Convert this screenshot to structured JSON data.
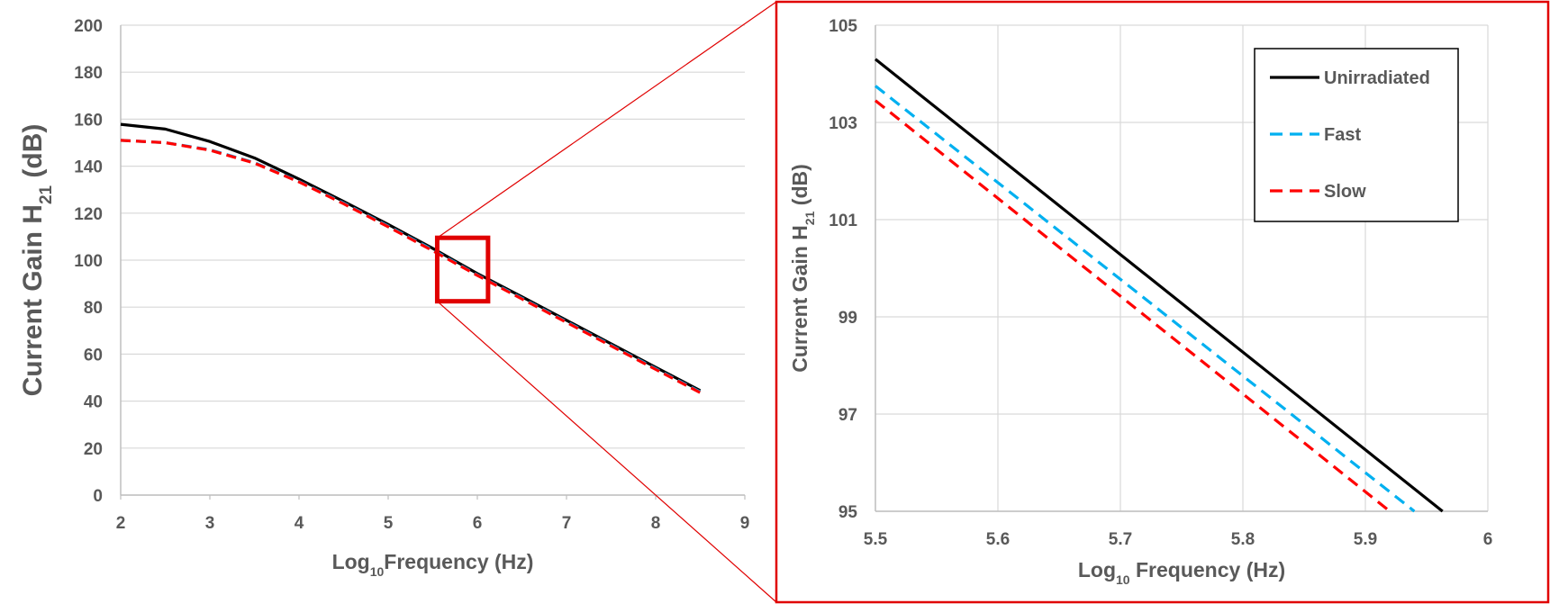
{
  "colors": {
    "unirradiated": "#000000",
    "fast": "#00b0f0",
    "slow": "#ff0000",
    "grid": "#d9d9d9",
    "axis": "#bfbfbf",
    "text": "#595959",
    "zoom_frame": "#e00000"
  },
  "chart_data": [
    {
      "type": "line",
      "title": "",
      "xlabel": {
        "prefix": "Log",
        "sub": "10",
        "suffix": "Frequency (Hz)"
      },
      "ylabel": {
        "prefix": "Current Gain H",
        "sub": "21",
        "suffix": " (dB)"
      },
      "xlim": [
        2,
        9
      ],
      "ylim": [
        0,
        200
      ],
      "xticks": [
        "2",
        "3",
        "4",
        "5",
        "6",
        "7",
        "8",
        "9"
      ],
      "yticks": [
        "0",
        "20",
        "40",
        "60",
        "80",
        "100",
        "120",
        "140",
        "160",
        "180",
        "200"
      ],
      "grid": "horizontal",
      "series": [
        {
          "name": "Unirradiated",
          "style": "solid",
          "points": [
            [
              2.0,
              157.8
            ],
            [
              2.5,
              155.8
            ],
            [
              3.0,
              150.5
            ],
            [
              3.5,
              143.5
            ],
            [
              4.0,
              134.5
            ],
            [
              4.5,
              125.0
            ],
            [
              5.0,
              115.2
            ],
            [
              5.5,
              105.0
            ],
            [
              6.0,
              94.3
            ],
            [
              6.5,
              84.4
            ],
            [
              7.0,
              74.4
            ],
            [
              7.5,
              64.4
            ],
            [
              8.0,
              54.4
            ],
            [
              8.5,
              44.5
            ]
          ]
        },
        {
          "name": "Fast",
          "style": "dashed",
          "points": [
            [
              2.0,
              151.0
            ],
            [
              2.5,
              150.0
            ],
            [
              3.0,
              147.0
            ],
            [
              3.5,
              141.5
            ],
            [
              4.0,
              133.5
            ],
            [
              4.5,
              124.3
            ],
            [
              5.0,
              114.5
            ],
            [
              5.5,
              104.4
            ],
            [
              6.0,
              93.7
            ],
            [
              6.5,
              83.8
            ],
            [
              7.0,
              73.8
            ],
            [
              7.5,
              63.8
            ],
            [
              8.0,
              53.8
            ],
            [
              8.5,
              43.9
            ]
          ]
        },
        {
          "name": "Slow",
          "style": "dashed",
          "points": [
            [
              2.0,
              151.0
            ],
            [
              2.5,
              150.0
            ],
            [
              3.0,
              146.8
            ],
            [
              3.5,
              141.3
            ],
            [
              4.0,
              133.3
            ],
            [
              4.5,
              124.0
            ],
            [
              5.0,
              114.2
            ],
            [
              5.5,
              104.0
            ],
            [
              6.0,
              93.5
            ],
            [
              6.5,
              83.5
            ],
            [
              7.0,
              73.5
            ],
            [
              7.5,
              63.5
            ],
            [
              8.0,
              53.5
            ],
            [
              8.5,
              43.6
            ]
          ]
        }
      ],
      "highlight_box": {
        "x": [
          5.55,
          6.12
        ],
        "y": [
          82.5,
          109.5
        ]
      }
    },
    {
      "type": "line",
      "title": "",
      "xlabel": {
        "prefix": "Log",
        "sub": "10",
        "suffix": " Frequency (Hz)"
      },
      "ylabel": {
        "prefix": "Current Gain H",
        "sub": "21",
        "suffix": " (dB)"
      },
      "xlim": [
        5.5,
        6
      ],
      "ylim": [
        95,
        105
      ],
      "xticks": [
        "5.5",
        "5.6",
        "5.7",
        "5.8",
        "5.9",
        "6"
      ],
      "yticks": [
        "95",
        "97",
        "99",
        "101",
        "103",
        "105"
      ],
      "grid": "both",
      "legend": {
        "position": "top-right",
        "entries": [
          "Unirradiated",
          "Fast",
          "Slow"
        ]
      },
      "series": [
        {
          "name": "Unirradiated",
          "style": "solid",
          "points": [
            [
              5.5,
              104.3
            ],
            [
              5.963,
              95.0
            ]
          ]
        },
        {
          "name": "Fast",
          "style": "dashed",
          "points": [
            [
              5.5,
              103.75
            ],
            [
              5.94,
              95.0
            ]
          ]
        },
        {
          "name": "Slow",
          "style": "dashed",
          "points": [
            [
              5.5,
              103.45
            ],
            [
              5.92,
              95.0
            ]
          ]
        }
      ]
    }
  ]
}
